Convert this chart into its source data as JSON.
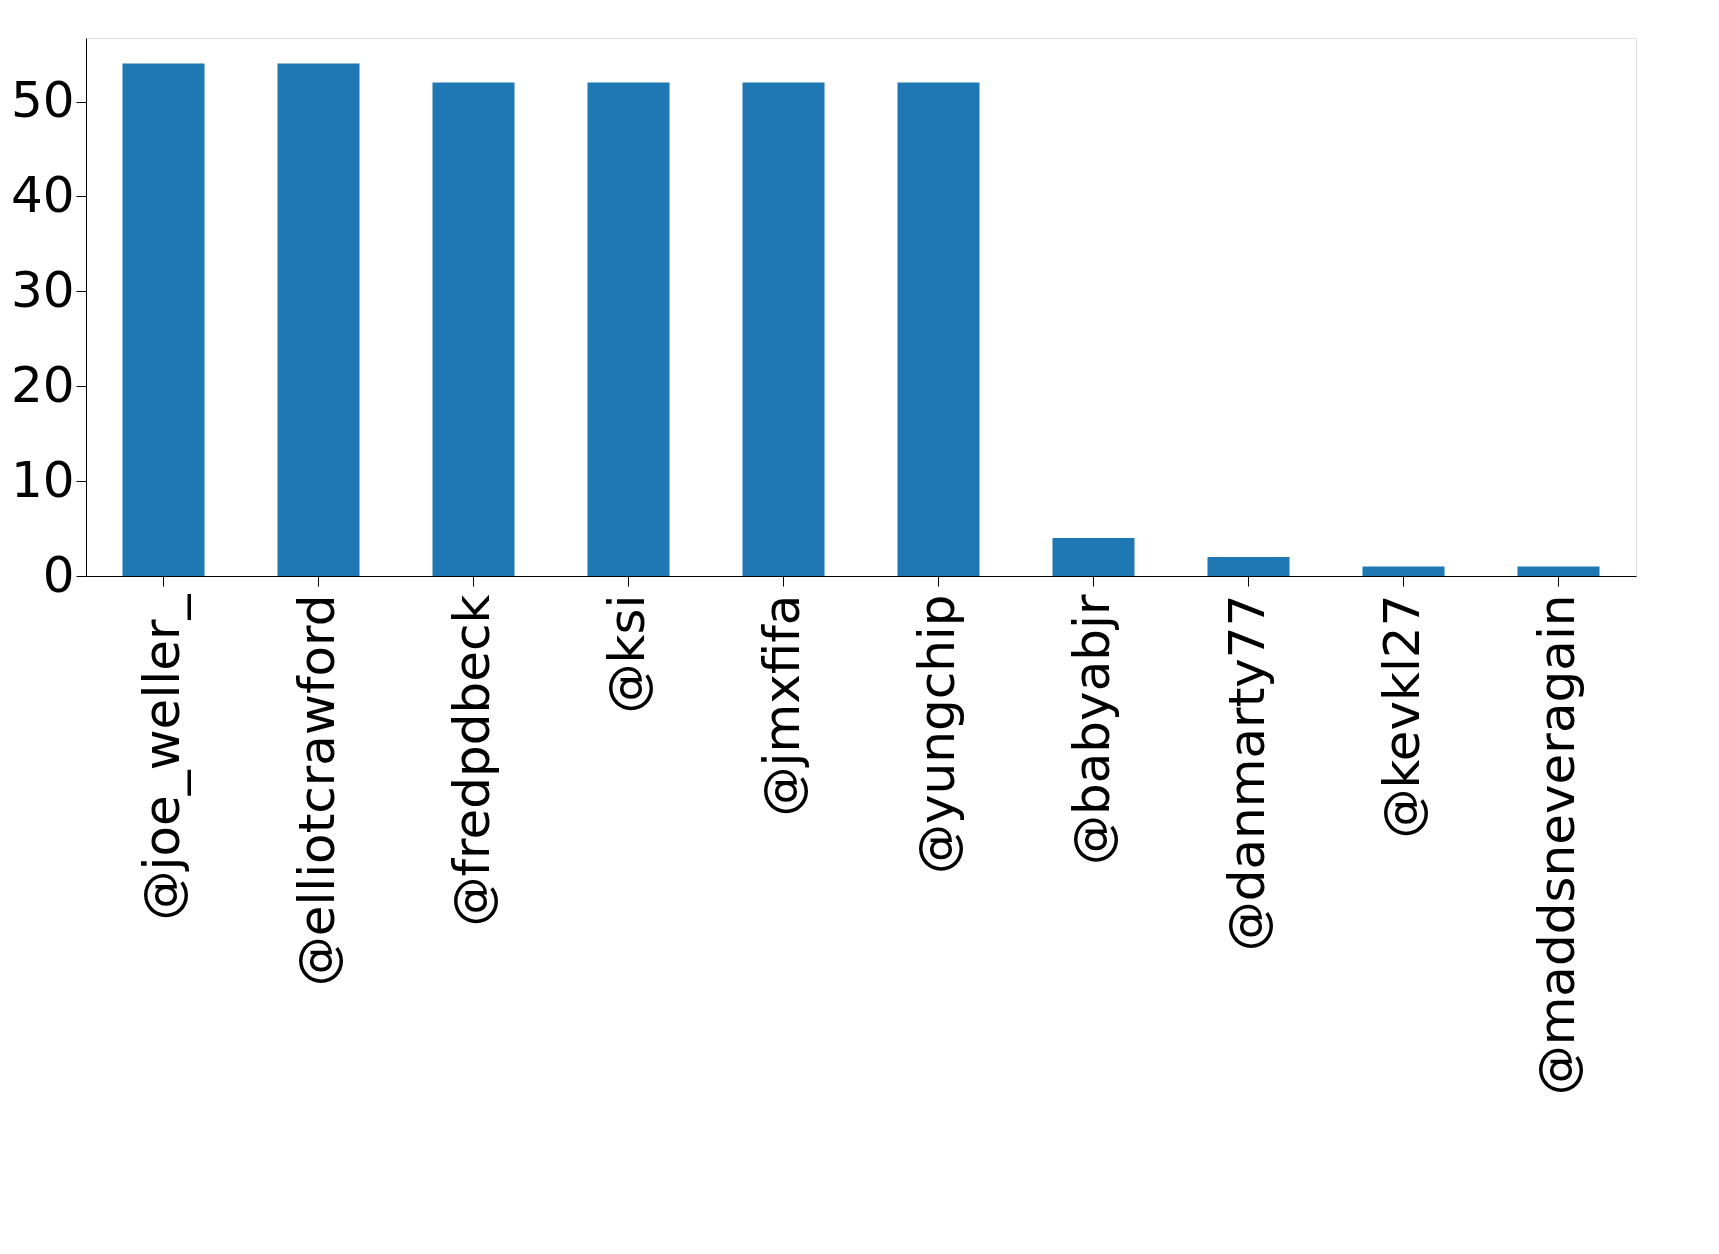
{
  "chart_data": {
    "type": "bar",
    "categories": [
      "@joe_weller_",
      "@elliotcrawford",
      "@fredpdbeck",
      "@ksi",
      "@jmxfifa",
      "@yungchip",
      "@babyabjr",
      "@danmarty77",
      "@kevkl27",
      "@maddsneveragain"
    ],
    "values": [
      54,
      54,
      52,
      52,
      52,
      52,
      4,
      2,
      1,
      1
    ],
    "color": "#1f77b4",
    "ylim": [
      0,
      56.7
    ],
    "yticks": [
      0,
      10,
      20,
      30,
      40,
      50
    ],
    "grid": false
  }
}
